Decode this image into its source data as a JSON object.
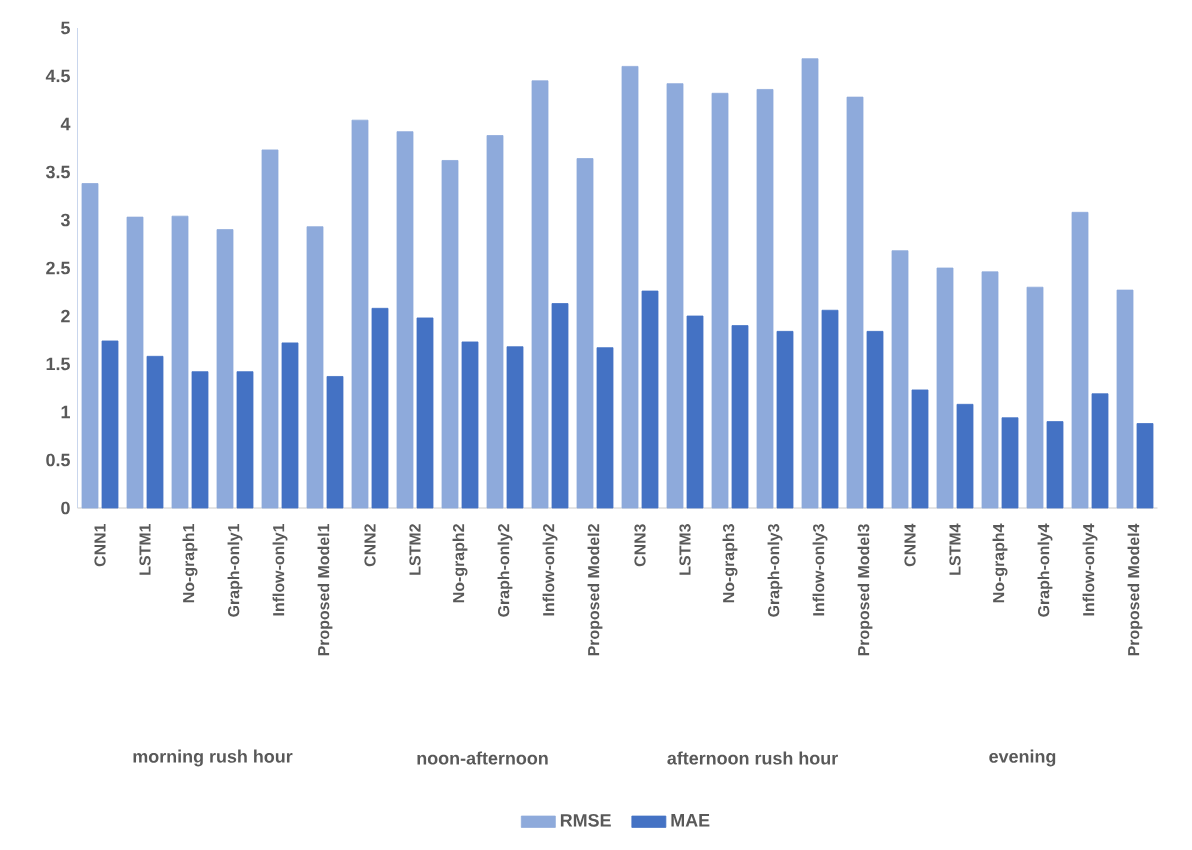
{
  "chart_data": {
    "type": "bar",
    "categories": [
      "CNN1",
      "LSTM1",
      "No-graph1",
      "Graph-only1",
      "Inflow-only1",
      "Proposed Model1",
      "CNN2",
      "LSTM2",
      "No-graph2",
      "Graph-only2",
      "Inflow-only2",
      "Proposed Model2",
      "CNN3",
      "LSTM3",
      "No-graph3",
      "Graph-only3",
      "Inflow-only3",
      "Proposed Model3",
      "CNN4",
      "LSTM4",
      "No-graph4",
      "Graph-only4",
      "Inflow-only4",
      "Proposed Model4"
    ],
    "series": [
      {
        "name": "RMSE",
        "color": "#8eaadb",
        "values": [
          3.38,
          3.03,
          3.04,
          2.9,
          3.73,
          2.93,
          4.04,
          3.92,
          3.62,
          3.88,
          4.45,
          3.64,
          4.6,
          4.42,
          4.32,
          4.36,
          4.68,
          4.28,
          2.68,
          2.5,
          2.46,
          2.3,
          3.08,
          2.27
        ]
      },
      {
        "name": "MAE",
        "color": "#4472c4",
        "values": [
          1.74,
          1.58,
          1.42,
          1.42,
          1.72,
          1.37,
          2.08,
          1.98,
          1.73,
          1.68,
          2.13,
          1.67,
          2.26,
          2.0,
          1.9,
          1.84,
          2.06,
          1.84,
          1.23,
          1.08,
          0.94,
          0.9,
          1.19,
          0.88
        ]
      }
    ],
    "ylim": [
      0,
      5
    ],
    "yticks": [
      0,
      0.5,
      1,
      1.5,
      2,
      2.5,
      3,
      3.5,
      4,
      4.5,
      5
    ],
    "grid": false,
    "legend": "bottom",
    "annotations": [
      "morning rush hour",
      "noon-afternoon",
      "afternoon rush hour",
      "evening"
    ]
  }
}
